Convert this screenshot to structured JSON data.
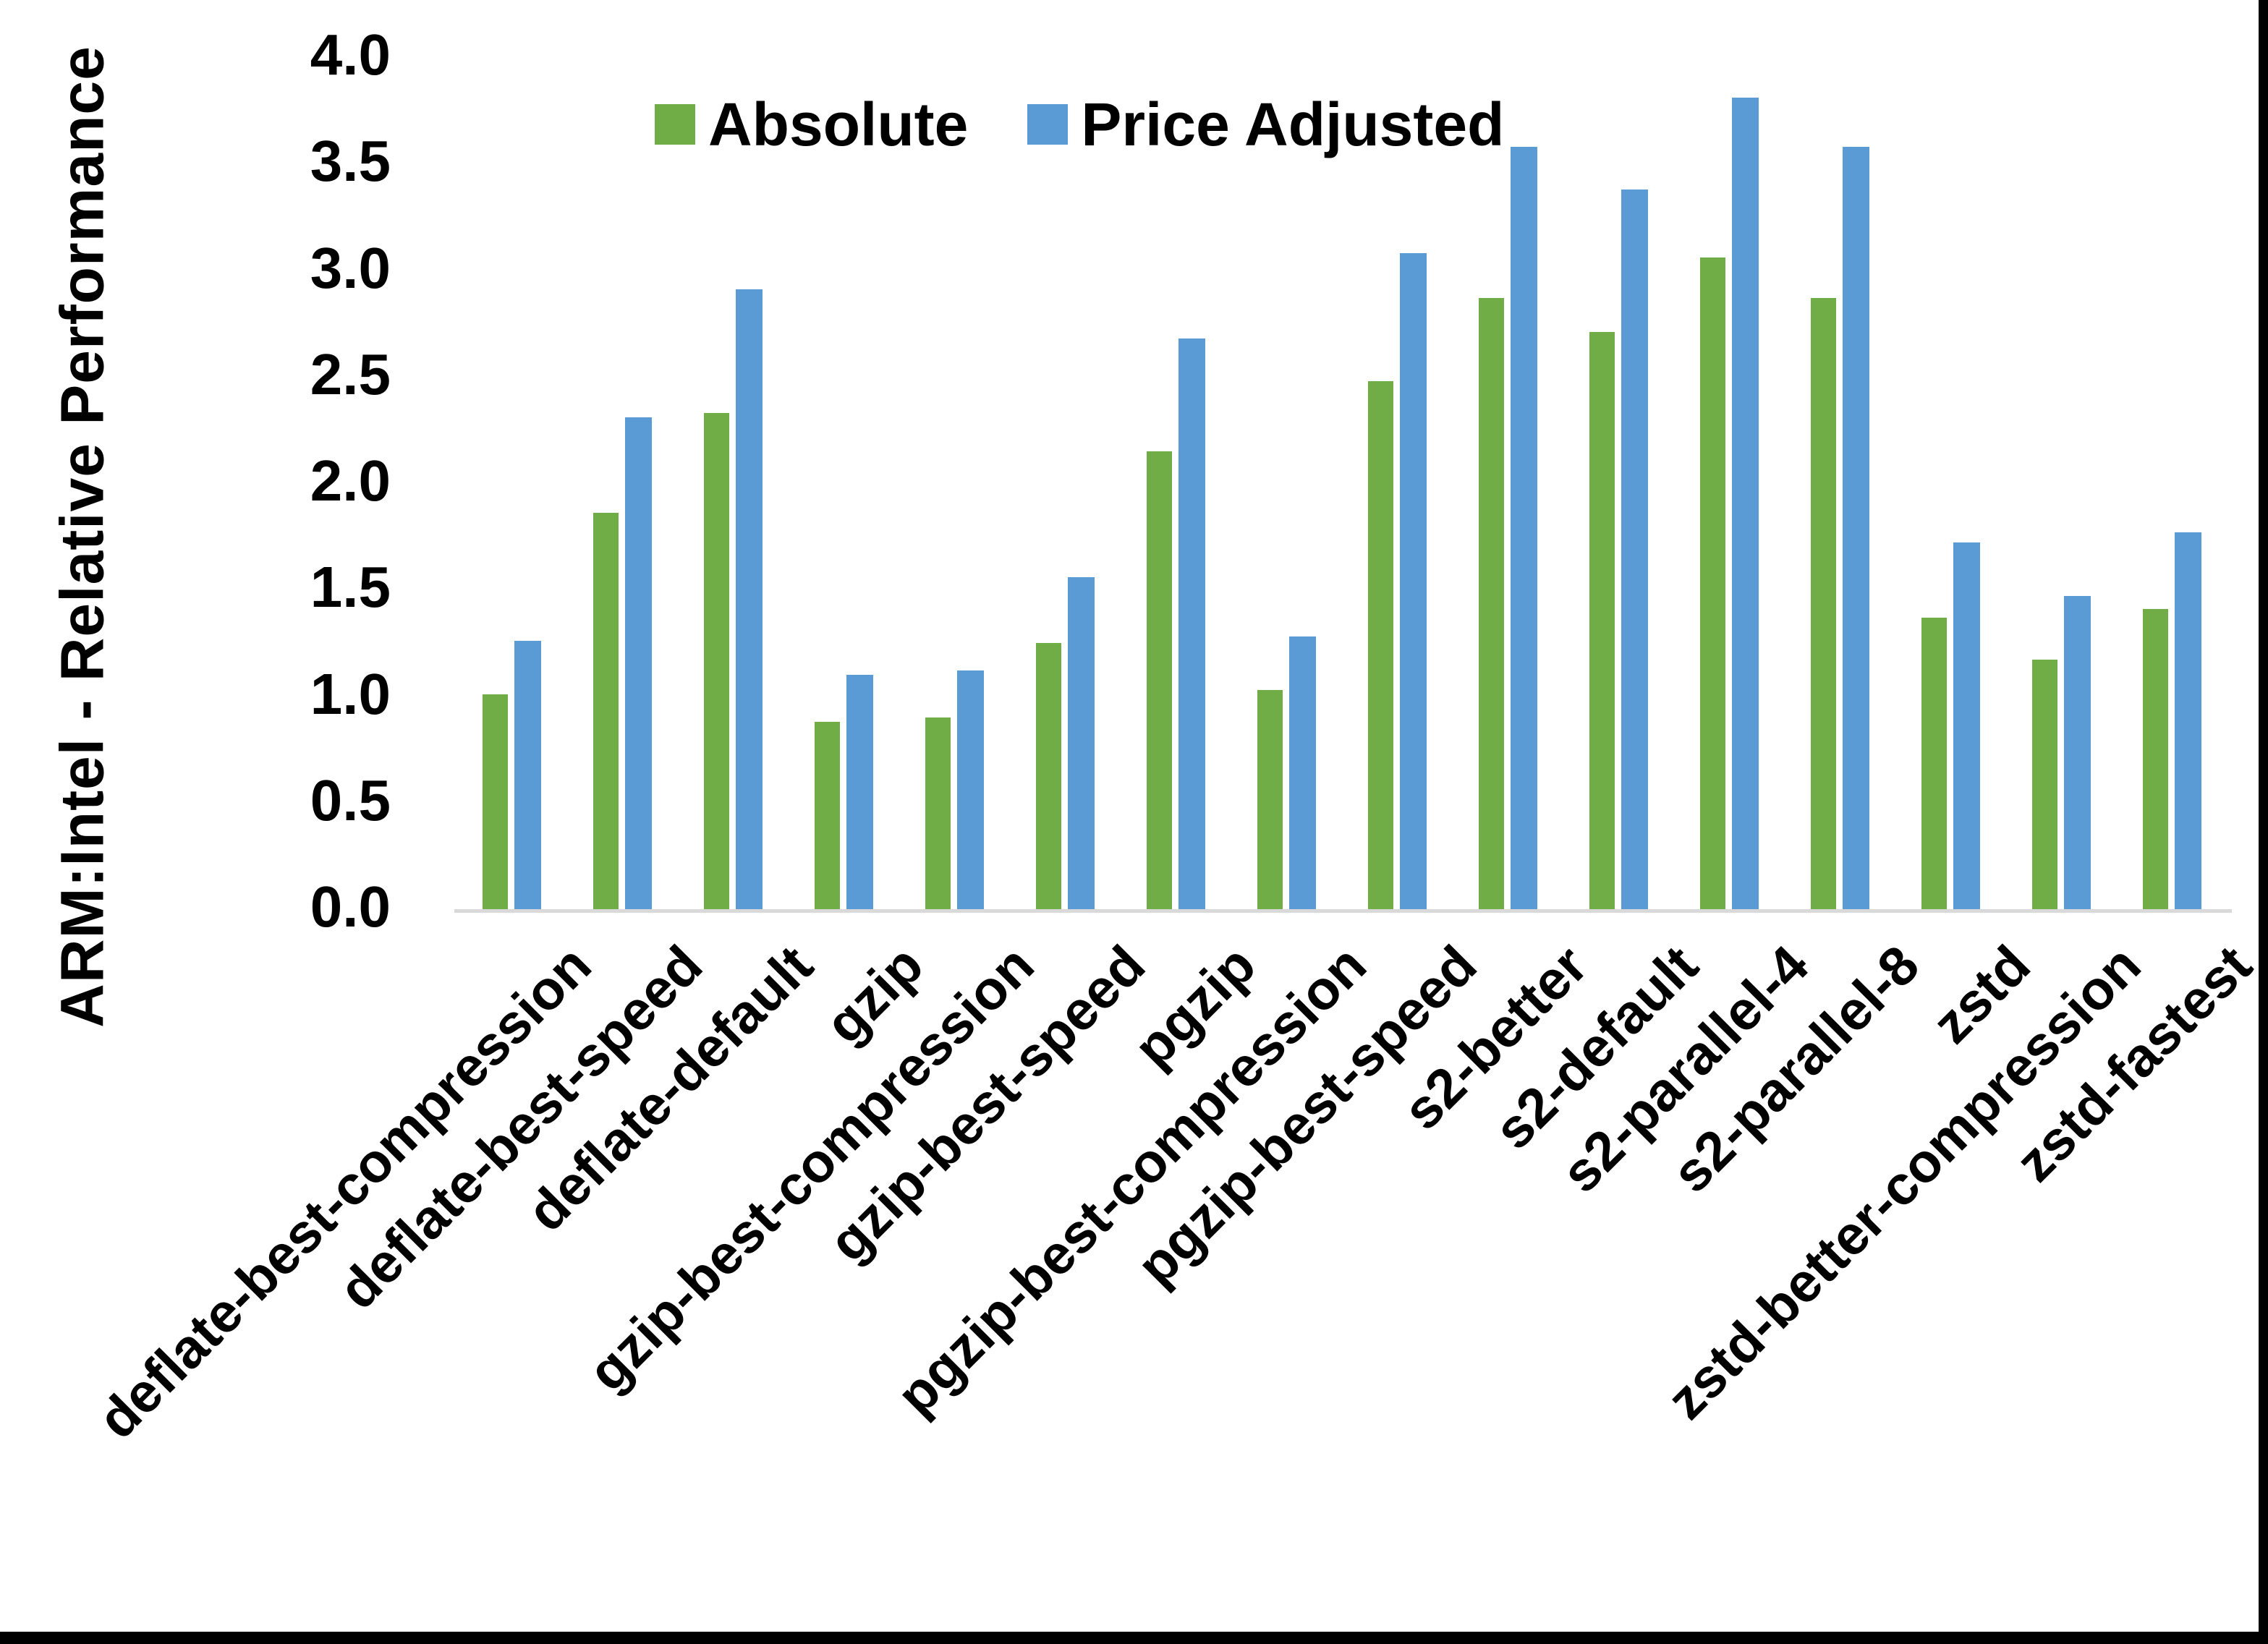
{
  "chart_data": {
    "type": "bar",
    "title": "",
    "xlabel": "",
    "ylabel": "ARM:Intel - Relative Performance",
    "ylim": [
      0,
      4
    ],
    "ytick_step": 0.5,
    "yticks": [
      "0.0",
      "0.5",
      "1.0",
      "1.5",
      "2.0",
      "2.5",
      "3.0",
      "3.5",
      "4.0"
    ],
    "grid": false,
    "legend_position": "top-center",
    "categories": [
      "deflate-best-compression",
      "deflate-best-speed",
      "deflate-default",
      "gzip",
      "gzip-best-compression",
      "gzip-best-speed",
      "pgzip",
      "pgzip-best-compression",
      "pgzip-best-speed",
      "s2-better",
      "s2-default",
      "s2-parallel-4",
      "s2-parallel-8",
      "zstd",
      "zstd-better-compression",
      "zstd-fastest"
    ],
    "series": [
      {
        "name": "Absolute",
        "color": "#70AD47",
        "values": [
          1.01,
          1.86,
          2.33,
          0.88,
          0.9,
          1.25,
          2.15,
          1.03,
          2.48,
          2.87,
          2.71,
          3.06,
          2.87,
          1.37,
          1.17,
          1.41
        ]
      },
      {
        "name": "Price Adjusted",
        "color": "#5B9BD5",
        "values": [
          1.26,
          2.31,
          2.91,
          1.1,
          1.12,
          1.56,
          2.68,
          1.28,
          3.08,
          3.58,
          3.38,
          3.81,
          3.58,
          1.72,
          1.47,
          1.77
        ]
      }
    ],
    "colors": {
      "axis_line": "#D9D9D9",
      "text": "#000000",
      "background": "#FFFFFF",
      "frame_border": "#000000"
    }
  }
}
